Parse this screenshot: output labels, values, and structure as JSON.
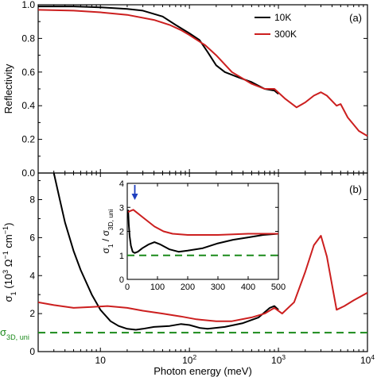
{
  "colors": {
    "black_series": "#000000",
    "red_series": "#cc1f1f",
    "reference_line": "#1a8a1a",
    "arrow": "#1f3fbf"
  },
  "chart_data": [
    {
      "panel": "(a)",
      "type": "line",
      "xscale": "log",
      "xlim": [
        2,
        10000
      ],
      "ylim": [
        0.0,
        1.0
      ],
      "xlabel": "",
      "ylabel": "Reflectivity",
      "yticks": [
        "0.0",
        "0.2",
        "0.4",
        "0.6",
        "0.8",
        "1.0"
      ],
      "legend_position": "top-right",
      "series": [
        {
          "name": "10K",
          "color": "#000000",
          "points": [
            [
              2,
              0.99
            ],
            [
              5,
              0.99
            ],
            [
              10,
              0.985
            ],
            [
              20,
              0.975
            ],
            [
              30,
              0.965
            ],
            [
              50,
              0.93
            ],
            [
              70,
              0.88
            ],
            [
              100,
              0.83
            ],
            [
              130,
              0.79
            ],
            [
              160,
              0.72
            ],
            [
              200,
              0.64
            ],
            [
              250,
              0.6
            ],
            [
              350,
              0.57
            ],
            [
              500,
              0.54
            ],
            [
              700,
              0.5
            ],
            [
              900,
              0.49
            ],
            [
              1000,
              0.47
            ]
          ]
        },
        {
          "name": "300K",
          "color": "#cc1f1f",
          "points": [
            [
              2,
              0.97
            ],
            [
              5,
              0.965
            ],
            [
              10,
              0.955
            ],
            [
              20,
              0.94
            ],
            [
              40,
              0.91
            ],
            [
              60,
              0.88
            ],
            [
              80,
              0.85
            ],
            [
              100,
              0.82
            ],
            [
              150,
              0.76
            ],
            [
              200,
              0.7
            ],
            [
              300,
              0.6
            ],
            [
              500,
              0.53
            ],
            [
              700,
              0.5
            ],
            [
              900,
              0.5
            ],
            [
              1200,
              0.44
            ],
            [
              1600,
              0.39
            ],
            [
              2000,
              0.42
            ],
            [
              2500,
              0.46
            ],
            [
              3000,
              0.48
            ],
            [
              3500,
              0.46
            ],
            [
              4500,
              0.4
            ],
            [
              5000,
              0.41
            ],
            [
              6000,
              0.33
            ],
            [
              8000,
              0.25
            ],
            [
              10000,
              0.22
            ]
          ]
        }
      ]
    },
    {
      "panel": "(b)",
      "type": "line",
      "xscale": "log",
      "xlim": [
        2,
        10000
      ],
      "ylim": [
        0,
        9.4
      ],
      "xlabel": "Photon energy (meV)",
      "ylabel": "σ₁ (10³ Ω⁻¹ cm⁻¹)",
      "yticks": [
        "0",
        "2",
        "4",
        "6",
        "8"
      ],
      "xticks": [
        "10",
        "10²",
        "10³",
        "10⁴"
      ],
      "reference_label": "σ3D, uni",
      "reference_value": 1.0,
      "series": [
        {
          "name": "10K",
          "color": "#000000",
          "points": [
            [
              3.0,
              9.4
            ],
            [
              3.5,
              8.0
            ],
            [
              4,
              6.8
            ],
            [
              5,
              5.3
            ],
            [
              6,
              4.3
            ],
            [
              8,
              3.0
            ],
            [
              10,
              2.2
            ],
            [
              13,
              1.6
            ],
            [
              16,
              1.35
            ],
            [
              20,
              1.2
            ],
            [
              25,
              1.15
            ],
            [
              30,
              1.2
            ],
            [
              40,
              1.3
            ],
            [
              60,
              1.35
            ],
            [
              80,
              1.45
            ],
            [
              100,
              1.4
            ],
            [
              130,
              1.25
            ],
            [
              160,
              1.2
            ],
            [
              250,
              1.3
            ],
            [
              400,
              1.5
            ],
            [
              600,
              1.8
            ],
            [
              800,
              2.3
            ],
            [
              900,
              2.4
            ],
            [
              1000,
              2.2
            ]
          ]
        },
        {
          "name": "300K",
          "color": "#cc1f1f",
          "points": [
            [
              2,
              2.6
            ],
            [
              3,
              2.45
            ],
            [
              5,
              2.3
            ],
            [
              8,
              2.35
            ],
            [
              12,
              2.4
            ],
            [
              20,
              2.3
            ],
            [
              30,
              2.15
            ],
            [
              50,
              2.0
            ],
            [
              80,
              1.85
            ],
            [
              120,
              1.7
            ],
            [
              200,
              1.6
            ],
            [
              300,
              1.6
            ],
            [
              500,
              1.8
            ],
            [
              700,
              2.0
            ],
            [
              900,
              2.3
            ],
            [
              1100,
              2.0
            ],
            [
              1500,
              2.6
            ],
            [
              2000,
              4.2
            ],
            [
              2500,
              5.6
            ],
            [
              3000,
              6.1
            ],
            [
              3500,
              5.0
            ],
            [
              4000,
              3.5
            ],
            [
              4500,
              2.2
            ],
            [
              5500,
              2.4
            ],
            [
              7000,
              2.7
            ],
            [
              10000,
              3.1
            ]
          ]
        }
      ]
    },
    {
      "panel": "inset",
      "type": "line",
      "xscale": "linear",
      "xlim": [
        0,
        500
      ],
      "ylim": [
        0,
        4
      ],
      "xticks": [
        "0",
        "100",
        "200",
        "300",
        "400",
        "500"
      ],
      "yticks": [
        "0",
        "1",
        "2",
        "3",
        "4"
      ],
      "ylabel": "σ₁ / σ3D, uni",
      "reference_value": 1.0,
      "arrow_x": 25,
      "series": [
        {
          "name": "10K",
          "color": "#000000",
          "points": [
            [
              3,
              2.9
            ],
            [
              5,
              2.3
            ],
            [
              8,
              1.8
            ],
            [
              12,
              1.4
            ],
            [
              18,
              1.15
            ],
            [
              25,
              1.1
            ],
            [
              35,
              1.15
            ],
            [
              50,
              1.3
            ],
            [
              70,
              1.45
            ],
            [
              90,
              1.55
            ],
            [
              110,
              1.45
            ],
            [
              140,
              1.25
            ],
            [
              170,
              1.15
            ],
            [
              200,
              1.2
            ],
            [
              250,
              1.3
            ],
            [
              300,
              1.5
            ],
            [
              350,
              1.65
            ],
            [
              400,
              1.75
            ],
            [
              450,
              1.85
            ],
            [
              500,
              1.9
            ]
          ]
        },
        {
          "name": "300K",
          "color": "#cc1f1f",
          "points": [
            [
              3,
              2.8
            ],
            [
              10,
              2.85
            ],
            [
              20,
              2.9
            ],
            [
              30,
              2.8
            ],
            [
              50,
              2.6
            ],
            [
              70,
              2.4
            ],
            [
              90,
              2.2
            ],
            [
              120,
              2.0
            ],
            [
              150,
              1.9
            ],
            [
              200,
              1.85
            ],
            [
              300,
              1.85
            ],
            [
              400,
              1.9
            ],
            [
              500,
              1.9
            ]
          ]
        }
      ]
    }
  ]
}
